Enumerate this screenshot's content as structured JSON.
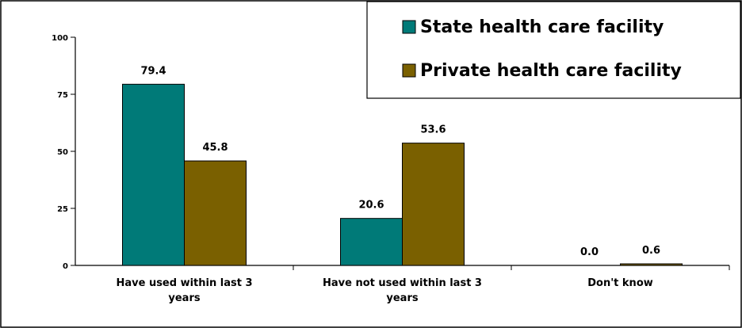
{
  "chart_data": {
    "type": "bar",
    "categories": [
      [
        "Have used within last 3",
        "years"
      ],
      [
        "Have not used within last 3",
        "years"
      ],
      [
        "Don't know"
      ]
    ],
    "series": [
      {
        "name": "State health care facility",
        "values": [
          79.4,
          20.6,
          0.0
        ],
        "labels": [
          "79.4",
          "20.6",
          "0.0"
        ],
        "color": "#007a78"
      },
      {
        "name": "Private health care facility",
        "values": [
          45.8,
          53.6,
          0.6
        ],
        "labels": [
          "45.8",
          "53.6",
          "0.6"
        ],
        "color": "#7a6000"
      }
    ],
    "yticks": [
      "0",
      "25",
      "50",
      "75",
      "100"
    ],
    "ylim": [
      0,
      100
    ],
    "legend_position": "top-right",
    "grid": false
  }
}
